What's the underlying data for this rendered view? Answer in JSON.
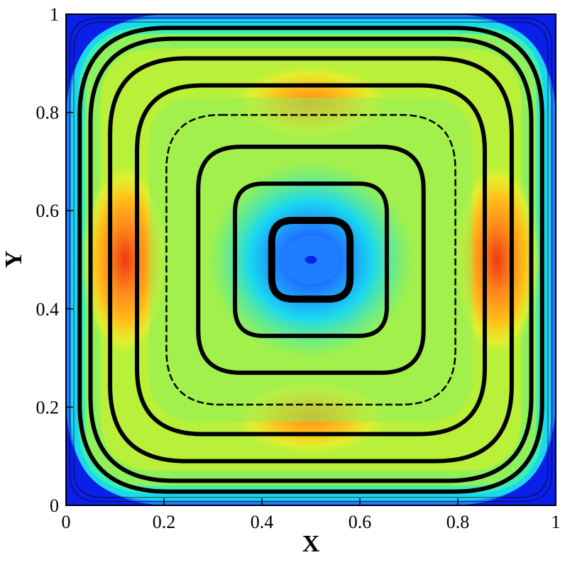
{
  "chart_data": {
    "type": "heatmap",
    "title": "",
    "xlabel": "X",
    "ylabel": "Y",
    "xlim": [
      0,
      1
    ],
    "ylim": [
      0,
      1
    ],
    "x_ticks": [
      "0",
      "0.2",
      "0.4",
      "0.6",
      "0.8",
      "1"
    ],
    "y_ticks": [
      "0",
      "0.2",
      "0.4",
      "0.6",
      "0.8",
      "1"
    ],
    "x_tick_values": [
      0,
      0.2,
      0.4,
      0.6,
      0.8,
      1
    ],
    "y_tick_values": [
      0,
      0.2,
      0.4,
      0.6,
      0.8,
      1
    ],
    "colormap": [
      "#0a1fe8",
      "#1f7dff",
      "#1ad8f0",
      "#3cf0b0",
      "#8ef05a",
      "#b8f03a",
      "#f0f02a",
      "#ffc21a",
      "#ff8a1a",
      "#ee3a12"
    ],
    "vortex_center": [
      0.5,
      0.5
    ],
    "streamlines_halfwidth": [
      0.08,
      0.155,
      0.23,
      0.295,
      0.355,
      0.41,
      0.45,
      0.472
    ],
    "high_spots": [
      {
        "x": 0.12,
        "y": 0.5,
        "level": 1.0
      },
      {
        "x": 0.88,
        "y": 0.5,
        "level": 1.0
      },
      {
        "x": 0.5,
        "y": 0.82,
        "level": 0.85
      },
      {
        "x": 0.5,
        "y": 0.18,
        "level": 0.85
      }
    ],
    "grid": false,
    "legend": "none"
  }
}
